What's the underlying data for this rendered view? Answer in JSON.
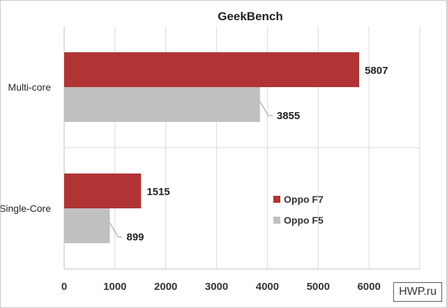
{
  "chart_data": {
    "type": "bar",
    "orientation": "horizontal",
    "title": "GeekBench",
    "xlabel": "",
    "ylabel": "",
    "xlim": [
      0,
      7000
    ],
    "x_ticks": [
      0,
      1000,
      2000,
      3000,
      4000,
      5000,
      6000
    ],
    "categories": [
      "Multi-core",
      "Single-Core"
    ],
    "series": [
      {
        "name": "Oppo F7",
        "color": "#b03434",
        "values": [
          5807,
          1515
        ]
      },
      {
        "name": "Oppo F5",
        "color": "#c0c0c0",
        "values": [
          3855,
          899
        ]
      }
    ],
    "grid": true,
    "legend_position": "inside-right",
    "data_labels": true
  },
  "watermark": "HWP.ru"
}
